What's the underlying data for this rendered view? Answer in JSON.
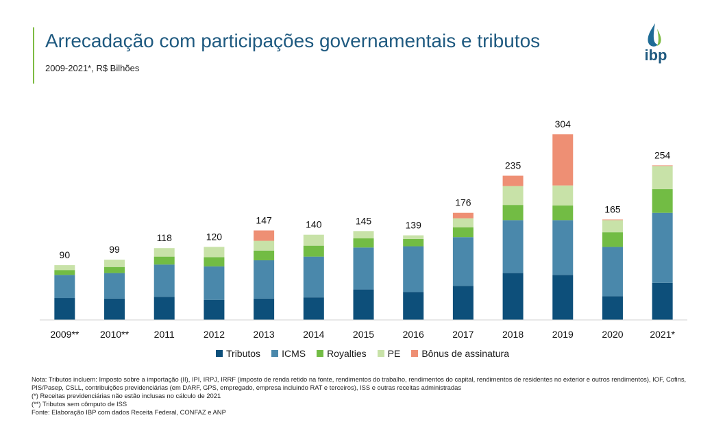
{
  "header": {
    "title": "Arrecadação com participações governamentais e tributos",
    "subtitle": "2009-2021*, R$ Bilhões",
    "logo_text": "ibp"
  },
  "chart_data": {
    "type": "bar",
    "stacked": true,
    "categories": [
      "2009**",
      "2010**",
      "2011",
      "2012",
      "2013",
      "2014",
      "2015",
      "2016",
      "2017",
      "2018",
      "2019",
      "2020",
      "2021*"
    ],
    "totals": [
      "90",
      "99",
      "118",
      "120",
      "147",
      "140",
      "145",
      "139",
      "176",
      "235",
      "304",
      "165",
      "254"
    ],
    "series": [
      {
        "name": "Tributos",
        "color": "#0d4f7a",
        "values": [
          36,
          35,
          38,
          33,
          35,
          37,
          50,
          46,
          56,
          77,
          74,
          39,
          61
        ]
      },
      {
        "name": "ICMS",
        "color": "#4a88ab",
        "values": [
          38,
          42,
          53,
          55,
          63,
          67,
          69,
          75,
          80,
          87,
          90,
          81,
          115
        ]
      },
      {
        "name": "Royalties",
        "color": "#72bc44",
        "values": [
          8,
          10,
          13,
          15,
          16,
          18,
          15,
          12,
          16,
          25,
          24,
          24,
          39
        ]
      },
      {
        "name": "PE",
        "color": "#c8e2a8",
        "values": [
          8,
          12,
          14,
          17,
          16,
          18,
          12,
          6,
          15,
          31,
          33,
          20,
          38
        ]
      },
      {
        "name": "Bônus de assinatura",
        "color": "#ee8f74",
        "values": [
          0,
          0,
          0,
          0,
          17,
          0,
          0,
          0,
          9,
          17,
          84,
          1,
          1
        ]
      }
    ],
    "ylim": [
      0,
      320
    ],
    "grid": false,
    "legend_position": "bottom"
  },
  "notes": [
    "Nota: Tributos incluem: Imposto sobre a importação (II), IPI, IRPJ, IRRF (imposto de renda retido na fonte, rendimentos do trabalho, rendimentos do capital, rendimentos de residentes no exterior e outros rendimentos), IOF, Cofins, PIS/Pasep, CSLL, contribuições previdenciárias (em DARF, GPS, empregado, empresa incluindo RAT e terceiros), ISS e outras receitas administradas",
    "(*) Receitas previdenciárias não estão inclusas no cálculo de 2021",
    "(**)  Tributos sem cômputo de ISS",
    "Fonte: Elaboração IBP com dados Receita Federal, CONFAZ e ANP"
  ]
}
